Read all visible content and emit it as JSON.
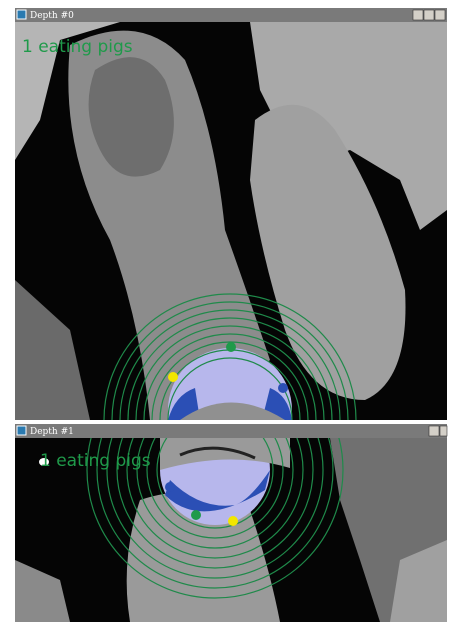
{
  "windows": [
    {
      "title": "Depth #0",
      "label": "1 eating pigs"
    },
    {
      "title": "Depth #1",
      "label": "1 eating pigs"
    }
  ]
}
